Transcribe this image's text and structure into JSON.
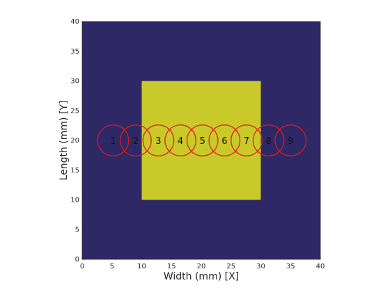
{
  "chart_data": {
    "type": "heatmap",
    "title": "",
    "xlabel": "Width (mm) [X]",
    "ylabel": "Length (mm) [Y]",
    "xlim": [
      0,
      40
    ],
    "ylim": [
      0,
      40
    ],
    "xticks": [
      0,
      5,
      10,
      15,
      20,
      25,
      30,
      35,
      40
    ],
    "yticks": [
      0,
      5,
      10,
      15,
      20,
      25,
      30,
      35,
      40
    ],
    "grid": false,
    "background_region": {
      "x": [
        0,
        40
      ],
      "y": [
        0,
        40
      ],
      "color": "#2f2866"
    },
    "regions": [
      {
        "x": [
          10,
          30
        ],
        "y": [
          10,
          30
        ],
        "color": "#c9c92a"
      }
    ],
    "circles": [
      {
        "label": "1",
        "x": 5.2,
        "y": 20,
        "radius": 2.6
      },
      {
        "label": "2",
        "x": 9.0,
        "y": 20,
        "radius": 2.6
      },
      {
        "label": "3",
        "x": 12.8,
        "y": 20,
        "radius": 2.6
      },
      {
        "label": "4",
        "x": 16.5,
        "y": 20,
        "radius": 2.6
      },
      {
        "label": "5",
        "x": 20.2,
        "y": 20,
        "radius": 2.6
      },
      {
        "label": "6",
        "x": 23.9,
        "y": 20,
        "radius": 2.6
      },
      {
        "label": "7",
        "x": 27.6,
        "y": 20,
        "radius": 2.6
      },
      {
        "label": "8",
        "x": 31.3,
        "y": 20,
        "radius": 2.6
      },
      {
        "label": "9",
        "x": 35.0,
        "y": 20,
        "radius": 2.6
      }
    ],
    "circle_color": "#e01a1a"
  }
}
